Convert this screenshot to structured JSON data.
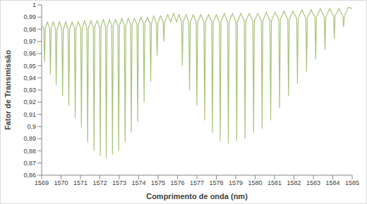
{
  "chart_data": {
    "type": "line",
    "x_label": "Comprimento de onda (nm)",
    "y_label": "Fator de Transmissão",
    "color": "#a8c47c",
    "grid": false,
    "xlim": [
      1569,
      1585
    ],
    "xticks": [
      1569,
      1570,
      1571,
      1572,
      1573,
      1574,
      1575,
      1576,
      1577,
      1578,
      1579,
      1580,
      1581,
      1582,
      1583,
      1584,
      1585
    ],
    "ylim": [
      0.86,
      1
    ],
    "yticks": [
      {
        "value": 0.86,
        "label": "0,86"
      },
      {
        "value": 0.87,
        "label": "0,87"
      },
      {
        "value": 0.88,
        "label": "0,88"
      },
      {
        "value": 0.89,
        "label": "0,89"
      },
      {
        "value": 0.9,
        "label": "0,9"
      },
      {
        "value": 0.91,
        "label": "0,91"
      },
      {
        "value": 0.92,
        "label": "0,92"
      },
      {
        "value": 0.93,
        "label": "0,93"
      },
      {
        "value": 0.94,
        "label": "0,94"
      },
      {
        "value": 0.95,
        "label": "0,95"
      },
      {
        "value": 0.96,
        "label": "0,96"
      },
      {
        "value": 0.97,
        "label": "0,97"
      },
      {
        "value": 0.98,
        "label": "0,98"
      },
      {
        "value": 0.99,
        "label": "0,99"
      },
      1
    ],
    "x": [
      1569.0,
      1569.11,
      1569.15,
      1569.19,
      1569.3,
      1569.41,
      1569.45,
      1569.49,
      1569.6,
      1569.71,
      1569.75,
      1569.79,
      1569.92,
      1570.04,
      1570.08,
      1570.12,
      1570.24,
      1570.36,
      1570.4,
      1570.44,
      1570.57,
      1570.69,
      1570.73,
      1570.77,
      1570.89,
      1571.01,
      1571.05,
      1571.09,
      1571.21,
      1571.33,
      1571.37,
      1571.41,
      1571.54,
      1571.66,
      1571.7,
      1571.74,
      1571.86,
      1571.98,
      1572.02,
      1572.06,
      1572.18,
      1572.29,
      1572.33,
      1572.37,
      1572.49,
      1572.61,
      1572.65,
      1572.69,
      1572.81,
      1572.93,
      1572.97,
      1573.01,
      1573.13,
      1573.26,
      1573.3,
      1573.34,
      1573.46,
      1573.58,
      1573.62,
      1573.66,
      1573.78,
      1573.91,
      1573.95,
      1573.99,
      1574.11,
      1574.24,
      1574.28,
      1574.32,
      1574.45,
      1574.58,
      1574.62,
      1574.66,
      1574.78,
      1574.91,
      1574.95,
      1574.99,
      1575.12,
      1575.26,
      1575.3,
      1575.34,
      1575.5,
      1575.65,
      1575.8,
      1575.95,
      1576.08,
      1576.21,
      1576.25,
      1576.29,
      1576.44,
      1576.58,
      1576.62,
      1576.66,
      1576.81,
      1576.96,
      1577.0,
      1577.04,
      1577.2,
      1577.36,
      1577.4,
      1577.44,
      1577.6,
      1577.76,
      1577.8,
      1577.84,
      1578.0,
      1578.16,
      1578.2,
      1578.24,
      1578.41,
      1578.58,
      1578.62,
      1578.66,
      1578.83,
      1579.01,
      1579.05,
      1579.09,
      1579.26,
      1579.44,
      1579.48,
      1579.52,
      1579.7,
      1579.88,
      1579.92,
      1579.96,
      1580.14,
      1580.32,
      1580.36,
      1580.4,
      1580.58,
      1580.76,
      1580.8,
      1580.84,
      1581.03,
      1581.22,
      1581.26,
      1581.3,
      1581.49,
      1581.68,
      1581.72,
      1581.76,
      1581.95,
      1582.14,
      1582.18,
      1582.22,
      1582.41,
      1582.61,
      1582.65,
      1582.69,
      1582.88,
      1583.08,
      1583.12,
      1583.16,
      1583.36,
      1583.56,
      1583.6,
      1583.64,
      1583.84,
      1584.04,
      1584.08,
      1584.12,
      1584.32,
      1584.52,
      1584.56,
      1584.6,
      1584.8,
      1585.0
    ],
    "values": [
      0.983,
      0.981,
      0.953,
      0.981,
      0.986,
      0.981,
      0.943,
      0.981,
      0.986,
      0.98,
      0.934,
      0.98,
      0.986,
      0.98,
      0.925,
      0.98,
      0.986,
      0.98,
      0.917,
      0.98,
      0.986,
      0.981,
      0.907,
      0.981,
      0.986,
      0.981,
      0.899,
      0.981,
      0.987,
      0.981,
      0.887,
      0.981,
      0.987,
      0.982,
      0.88,
      0.982,
      0.987,
      0.982,
      0.876,
      0.982,
      0.988,
      0.982,
      0.874,
      0.982,
      0.988,
      0.983,
      0.877,
      0.983,
      0.988,
      0.983,
      0.88,
      0.983,
      0.989,
      0.983,
      0.887,
      0.983,
      0.989,
      0.984,
      0.895,
      0.984,
      0.989,
      0.984,
      0.904,
      0.984,
      0.99,
      0.985,
      0.92,
      0.985,
      0.99,
      0.985,
      0.937,
      0.985,
      0.991,
      0.985,
      0.958,
      0.985,
      0.991,
      0.986,
      0.97,
      0.986,
      0.992,
      0.986,
      0.993,
      0.986,
      0.992,
      0.986,
      0.95,
      0.986,
      0.992,
      0.986,
      0.93,
      0.986,
      0.992,
      0.986,
      0.917,
      0.986,
      0.992,
      0.986,
      0.905,
      0.986,
      0.992,
      0.986,
      0.895,
      0.986,
      0.992,
      0.986,
      0.888,
      0.986,
      0.993,
      0.986,
      0.886,
      0.986,
      0.993,
      0.986,
      0.888,
      0.986,
      0.993,
      0.987,
      0.89,
      0.987,
      0.993,
      0.987,
      0.895,
      0.987,
      0.993,
      0.987,
      0.898,
      0.987,
      0.994,
      0.987,
      0.905,
      0.987,
      0.994,
      0.988,
      0.915,
      0.988,
      0.995,
      0.988,
      0.925,
      0.988,
      0.995,
      0.989,
      0.935,
      0.989,
      0.996,
      0.989,
      0.945,
      0.989,
      0.996,
      0.99,
      0.955,
      0.99,
      0.997,
      0.99,
      0.963,
      0.99,
      0.997,
      0.991,
      0.972,
      0.991,
      0.997,
      0.991,
      0.982,
      0.991,
      0.998,
      0.997
    ]
  }
}
